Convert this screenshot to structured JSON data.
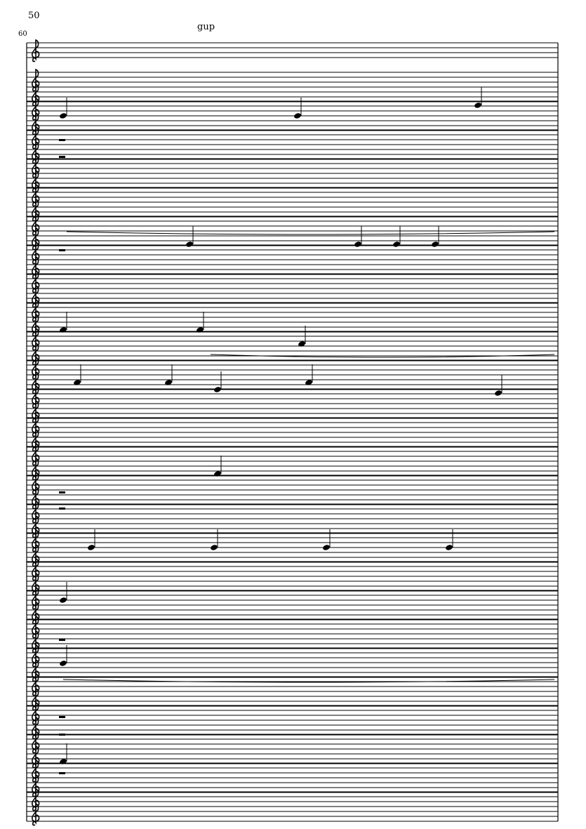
{
  "score": {
    "measure_number": "50",
    "staff_number": "60",
    "text_mark": "gup",
    "ink_color": "#000000"
  }
}
